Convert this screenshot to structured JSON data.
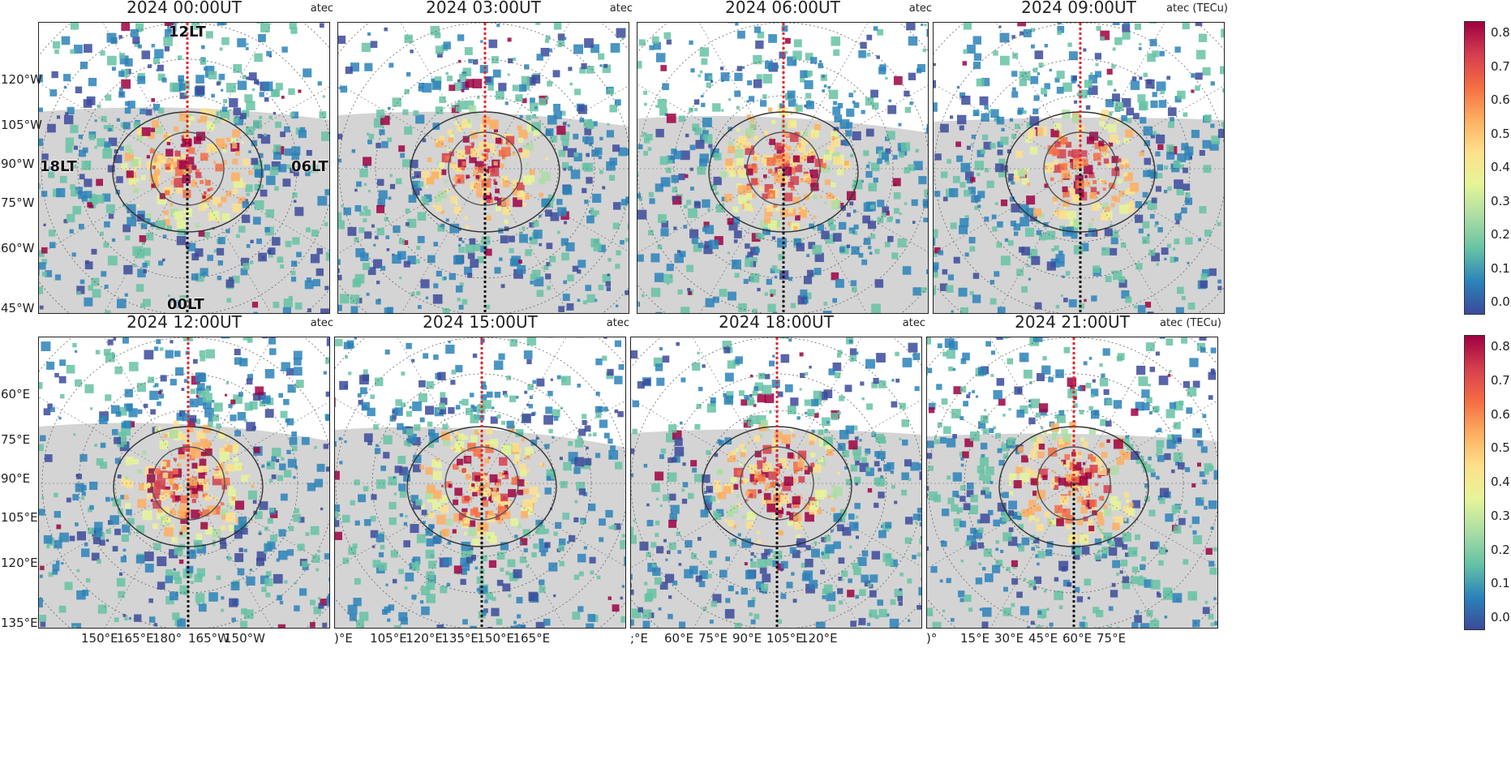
{
  "panels": [
    {
      "title": "2024 00:00UT",
      "label": "atec",
      "cut": 0
    },
    {
      "title": "2024 03:00UT",
      "label": "atec",
      "cut": 1
    },
    {
      "title": "2024 06:00UT",
      "label": "atec",
      "cut": 2
    },
    {
      "title": "2024 09:00UT",
      "label": "atec (TECu)",
      "cut": 3
    },
    {
      "title": "2024 12:00UT",
      "label": "atec",
      "cut": 4
    },
    {
      "title": "2024 15:00UT",
      "label": "atec",
      "cut": 5
    },
    {
      "title": "2024 18:00UT",
      "label": "atec",
      "cut": 6
    },
    {
      "title": "2024 21:00UT",
      "label": "atec (TECu)",
      "cut": 7
    }
  ],
  "lt_labels": {
    "noon": "12LT",
    "dusk": "18LT",
    "dawn": "06LT",
    "midnight": "00LT"
  },
  "lat_labels_row1": [
    "120°W",
    "105°W",
    "90°W",
    "75°W",
    "60°W",
    "45°W"
  ],
  "lat_labels_row2": [
    "60°E",
    "75°E",
    "90°E",
    "105°E",
    "120°E",
    "135°E"
  ],
  "lon_labels_row2": [
    [
      "150°E",
      "165°E",
      "180°",
      "165°W",
      "150°W"
    ],
    [
      ")°E",
      "105°E",
      "120°E",
      "135°E",
      "150°E",
      "165°E"
    ],
    [
      ";°E",
      "60°E",
      "75°E",
      "90°E",
      "105°E",
      "120°E"
    ],
    [
      ")°",
      "15°E",
      "30°E",
      "45°E",
      "60°E",
      "75°E"
    ]
  ],
  "colorbar": {
    "ticks": [
      "0.8",
      "0.7",
      "0.6",
      "0.5",
      "0.4",
      "0.3",
      "0.2",
      "0.1",
      "0.0"
    ],
    "range": [
      0.0,
      0.8
    ],
    "colors": [
      "#3b4a9b",
      "#2b83ba",
      "#66c2a5",
      "#abdda4",
      "#e6f598",
      "#fee08b",
      "#fdae61",
      "#f46d43",
      "#d53e4f",
      "#9e0142"
    ]
  },
  "meridian_colors": {
    "noon": "#e8252b",
    "midnight": "#111111"
  }
}
